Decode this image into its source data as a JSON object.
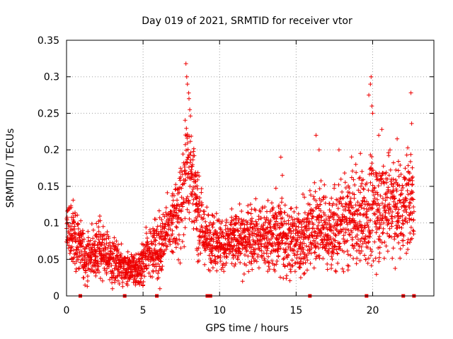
{
  "chart_data": {
    "type": "scatter",
    "title": "Day 019 of 2021, SRMTID for receiver vtor",
    "xlabel": "GPS time / hours",
    "ylabel": "SRMTID / TECUs",
    "xlim": [
      0,
      24
    ],
    "ylim": [
      0,
      0.35
    ],
    "x_ticks": [
      0,
      5,
      10,
      15,
      20
    ],
    "x_tick_labels": [
      "0",
      "5",
      "10",
      "15",
      "20"
    ],
    "y_ticks": [
      0,
      0.05,
      0.1,
      0.15,
      0.2,
      0.25,
      0.3,
      0.35
    ],
    "y_tick_labels": [
      "0",
      "0.05",
      "0.1",
      "0.15",
      "0.2",
      "0.25",
      "0.3",
      "0.35"
    ],
    "grid": true,
    "marker": "+",
    "color": "#ee0000",
    "series": [
      {
        "name": "SRMTID",
        "profile_hours": [
          0,
          0.25,
          0.5,
          0.75,
          1.0,
          1.25,
          1.5,
          1.75,
          2.0,
          2.25,
          2.5,
          2.75,
          3.0,
          3.25,
          3.5,
          3.75,
          4.0,
          4.25,
          4.5,
          4.75,
          5.0,
          5.25,
          5.5,
          5.75,
          6.0,
          6.25,
          6.5,
          6.75,
          7.0,
          7.25,
          7.5,
          7.75,
          8.0,
          8.25,
          8.5,
          8.75,
          9.0,
          9.25,
          9.5,
          9.75,
          10.0,
          10.5,
          11.0,
          11.5,
          12.0,
          12.5,
          13.0,
          13.5,
          14.0,
          14.5,
          15.0,
          15.5,
          16.0,
          16.5,
          17.0,
          17.5,
          18.0,
          18.5,
          19.0,
          19.5,
          20.0,
          20.5,
          21.0,
          21.5,
          22.0,
          22.5,
          22.7
        ],
        "profile_median": [
          0.095,
          0.085,
          0.08,
          0.075,
          0.06,
          0.055,
          0.055,
          0.06,
          0.06,
          0.065,
          0.06,
          0.055,
          0.045,
          0.05,
          0.04,
          0.035,
          0.035,
          0.04,
          0.035,
          0.035,
          0.045,
          0.06,
          0.07,
          0.065,
          0.06,
          0.075,
          0.09,
          0.1,
          0.1,
          0.115,
          0.13,
          0.17,
          0.19,
          0.15,
          0.12,
          0.095,
          0.085,
          0.08,
          0.08,
          0.08,
          0.075,
          0.07,
          0.075,
          0.08,
          0.08,
          0.085,
          0.08,
          0.08,
          0.085,
          0.08,
          0.075,
          0.075,
          0.1,
          0.1,
          0.085,
          0.09,
          0.1,
          0.105,
          0.1,
          0.105,
          0.12,
          0.12,
          0.13,
          0.12,
          0.12,
          0.14,
          0.12
        ],
        "profile_spread": [
          0.03,
          0.03,
          0.025,
          0.025,
          0.025,
          0.025,
          0.025,
          0.025,
          0.025,
          0.025,
          0.025,
          0.02,
          0.02,
          0.02,
          0.02,
          0.015,
          0.015,
          0.015,
          0.015,
          0.015,
          0.02,
          0.02,
          0.025,
          0.025,
          0.025,
          0.025,
          0.03,
          0.03,
          0.03,
          0.035,
          0.045,
          0.05,
          0.055,
          0.04,
          0.035,
          0.03,
          0.025,
          0.025,
          0.025,
          0.025,
          0.025,
          0.025,
          0.025,
          0.025,
          0.025,
          0.03,
          0.03,
          0.03,
          0.035,
          0.035,
          0.03,
          0.03,
          0.04,
          0.04,
          0.035,
          0.035,
          0.04,
          0.04,
          0.04,
          0.04,
          0.045,
          0.045,
          0.045,
          0.045,
          0.045,
          0.045,
          0.04
        ],
        "peaks": [
          {
            "x": 7.8,
            "y": 0.318
          },
          {
            "x": 7.85,
            "y": 0.3
          },
          {
            "x": 7.9,
            "y": 0.29
          },
          {
            "x": 8.0,
            "y": 0.27
          },
          {
            "x": 8.05,
            "y": 0.255
          },
          {
            "x": 19.9,
            "y": 0.3
          },
          {
            "x": 19.85,
            "y": 0.29
          },
          {
            "x": 19.75,
            "y": 0.275
          },
          {
            "x": 19.95,
            "y": 0.26
          },
          {
            "x": 20.0,
            "y": 0.25
          },
          {
            "x": 22.5,
            "y": 0.278
          },
          {
            "x": 22.55,
            "y": 0.236
          },
          {
            "x": 16.3,
            "y": 0.22
          },
          {
            "x": 16.5,
            "y": 0.2
          },
          {
            "x": 20.6,
            "y": 0.228
          },
          {
            "x": 20.4,
            "y": 0.22
          },
          {
            "x": 21.6,
            "y": 0.215
          },
          {
            "x": 14.0,
            "y": 0.19
          },
          {
            "x": 14.1,
            "y": 0.165
          },
          {
            "x": 19.2,
            "y": 0.195
          },
          {
            "x": 18.9,
            "y": 0.18
          },
          {
            "x": 17.8,
            "y": 0.2
          }
        ],
        "lows": [
          {
            "x": 3.0,
            "y": 0.01
          },
          {
            "x": 4.5,
            "y": 0.015
          },
          {
            "x": 5.0,
            "y": 0.015
          },
          {
            "x": 4.0,
            "y": 0.02
          },
          {
            "x": 11.5,
            "y": 0.02
          },
          {
            "x": 11.6,
            "y": 0.03
          },
          {
            "x": 6.1,
            "y": 0.01
          },
          {
            "x": 6.0,
            "y": 0.025
          },
          {
            "x": 15.3,
            "y": 0.025
          },
          {
            "x": 15.5,
            "y": 0.03
          }
        ]
      }
    ],
    "data_gaps_at_zero": [
      0.9,
      3.8,
      5.9,
      9.2,
      9.4,
      15.9,
      19.6,
      22.0,
      22.7
    ]
  }
}
